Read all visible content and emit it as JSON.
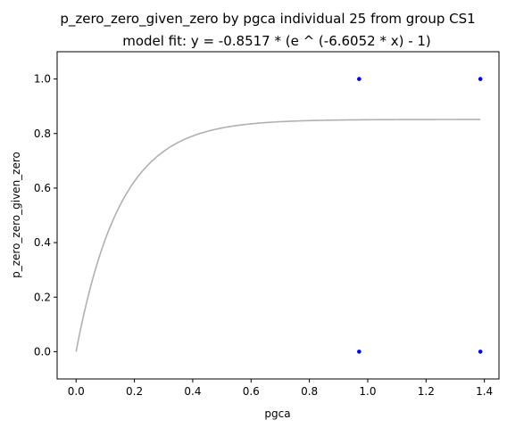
{
  "chart_data": {
    "type": "scatter",
    "title": "p_zero_zero_given_zero by pgca individual 25 from group CS1",
    "subtitle": "model fit: y = -0.8517 * (e ^ (-6.6052 * x) - 1)",
    "xlabel": "pgca",
    "ylabel": "p_zero_zero_given_zero",
    "xlim": [
      -0.065,
      1.45
    ],
    "ylim": [
      -0.1,
      1.1
    ],
    "x_ticks": [
      0.0,
      0.2,
      0.4,
      0.6,
      0.8,
      1.0,
      1.2,
      1.4
    ],
    "x_tick_labels": [
      "0.0",
      "0.2",
      "0.4",
      "0.6",
      "0.8",
      "1.0",
      "1.2",
      "1.4"
    ],
    "y_ticks": [
      0.0,
      0.2,
      0.4,
      0.6,
      0.8,
      1.0
    ],
    "y_tick_labels": [
      "0.0",
      "0.2",
      "0.4",
      "0.6",
      "0.8",
      "1.0"
    ],
    "grid": false,
    "legend": "none",
    "points": [
      {
        "x": 0.9705,
        "y": 1.0
      },
      {
        "x": 1.3863,
        "y": 1.0
      },
      {
        "x": 0.9705,
        "y": 0.0
      },
      {
        "x": 1.3863,
        "y": 0.0
      }
    ],
    "fit": {
      "a": 0.8517,
      "b": 6.6052,
      "x_range": [
        0.0,
        1.3863
      ]
    },
    "colors": {
      "points": "#0000ff",
      "fit": "#b0b0b0",
      "axes": "#000000"
    }
  }
}
